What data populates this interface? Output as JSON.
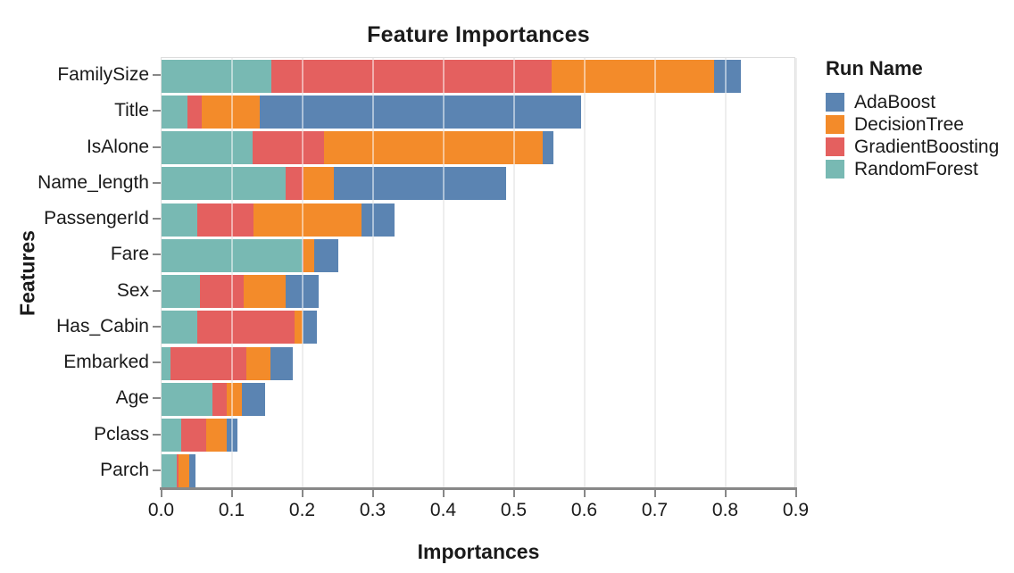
{
  "title": "Feature Importances",
  "axes": {
    "x": {
      "title": "Importances",
      "min": 0,
      "max": 0.9,
      "tick_labels": [
        "0.0",
        "0.1",
        "0.2",
        "0.3",
        "0.4",
        "0.5",
        "0.6",
        "0.7",
        "0.8",
        "0.9"
      ]
    },
    "y": {
      "title": "Features"
    }
  },
  "legend": {
    "title": "Run Name",
    "position": "right",
    "items": [
      {
        "label": "AdaBoost",
        "color": "#5b84b2"
      },
      {
        "label": "DecisionTree",
        "color": "#f38b2a"
      },
      {
        "label": "GradientBoosting",
        "color": "#e4605f"
      },
      {
        "label": "RandomForest",
        "color": "#78b9b3"
      }
    ]
  },
  "chart_data": {
    "type": "bar",
    "orientation": "horizontal",
    "stacked": true,
    "title": "Feature Importances",
    "xlabel": "Importances",
    "ylabel": "Features",
    "xlim": [
      0,
      0.9
    ],
    "grid": true,
    "legend_position": "right",
    "categories": [
      "FamilySize",
      "Title",
      "IsAlone",
      "Name_length",
      "PassengerId",
      "Fare",
      "Sex",
      "Has_Cabin",
      "Embarked",
      "Age",
      "Pclass",
      "Parch"
    ],
    "series": [
      {
        "name": "RandomForest",
        "color": "#78b9b3",
        "values": [
          0.156,
          0.037,
          0.129,
          0.176,
          0.05,
          0.2,
          0.054,
          0.05,
          0.013,
          0.072,
          0.028,
          0.021
        ]
      },
      {
        "name": "GradientBoosting",
        "color": "#e4605f",
        "values": [
          0.397,
          0.02,
          0.102,
          0.025,
          0.08,
          0.001,
          0.063,
          0.139,
          0.107,
          0.02,
          0.035,
          0.003
        ]
      },
      {
        "name": "DecisionTree",
        "color": "#f38b2a",
        "values": [
          0.23,
          0.082,
          0.309,
          0.043,
          0.154,
          0.016,
          0.059,
          0.011,
          0.034,
          0.022,
          0.029,
          0.015
        ]
      },
      {
        "name": "AdaBoost",
        "color": "#5b84b2",
        "values": [
          0.038,
          0.456,
          0.016,
          0.244,
          0.046,
          0.034,
          0.047,
          0.02,
          0.032,
          0.033,
          0.016,
          0.009
        ]
      }
    ],
    "totals": [
      0.821,
      0.595,
      0.556,
      0.488,
      0.33,
      0.251,
      0.223,
      0.22,
      0.186,
      0.147,
      0.108,
      0.048
    ]
  },
  "colors": {
    "grid": "#dddddd",
    "axis": "#888888",
    "frame": "#dddddd",
    "text": "#1a1a1a",
    "background": "#ffffff"
  }
}
